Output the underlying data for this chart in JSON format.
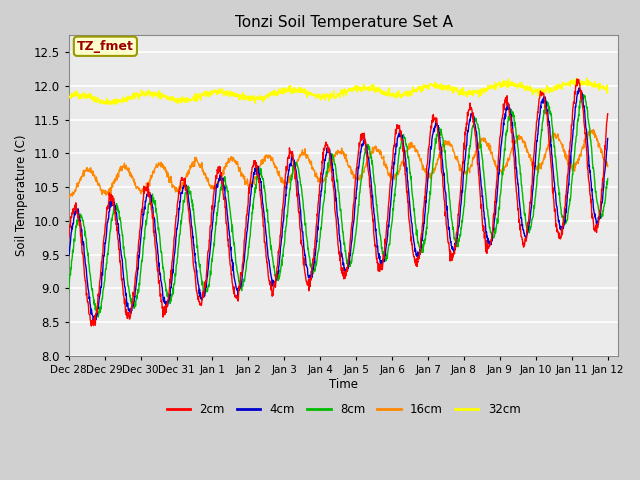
{
  "title": "Tonzi Soil Temperature Set A",
  "xlabel": "Time",
  "ylabel": "Soil Temperature (C)",
  "ylim": [
    8.0,
    12.75
  ],
  "yticks": [
    8.0,
    8.5,
    9.0,
    9.5,
    10.0,
    10.5,
    11.0,
    11.5,
    12.0,
    12.5
  ],
  "fig_bg_color": "#d0d0d0",
  "plot_bg_color": "#ebebeb",
  "annotation_label": "TZ_fmet",
  "annotation_bg": "#ffffcc",
  "annotation_border": "#999900",
  "annotation_text_color": "#990000",
  "legend_entries": [
    "2cm",
    "4cm",
    "8cm",
    "16cm",
    "32cm"
  ],
  "line_colors": [
    "#ff0000",
    "#0000cc",
    "#00bb00",
    "#ff8800",
    "#ffff00"
  ],
  "x_tick_days": [
    0,
    1,
    2,
    3,
    4,
    5,
    6,
    7,
    8,
    9,
    10,
    11,
    12,
    13,
    14,
    15
  ],
  "x_tick_labels": [
    "Dec 28",
    "Dec 29",
    "Dec 30",
    "Dec 31",
    "Jan 1",
    "Jan 2",
    "Jan 3",
    "Jan 4",
    "Jan 5",
    "Jan 6",
    "Jan 7",
    "Jan 8",
    "Jan 9",
    "Jan 10",
    "Jan 11",
    "Jan 12"
  ],
  "grid_color": "#ffffff",
  "n_points": 1500,
  "start_day": 0.0,
  "end_day": 15.0
}
